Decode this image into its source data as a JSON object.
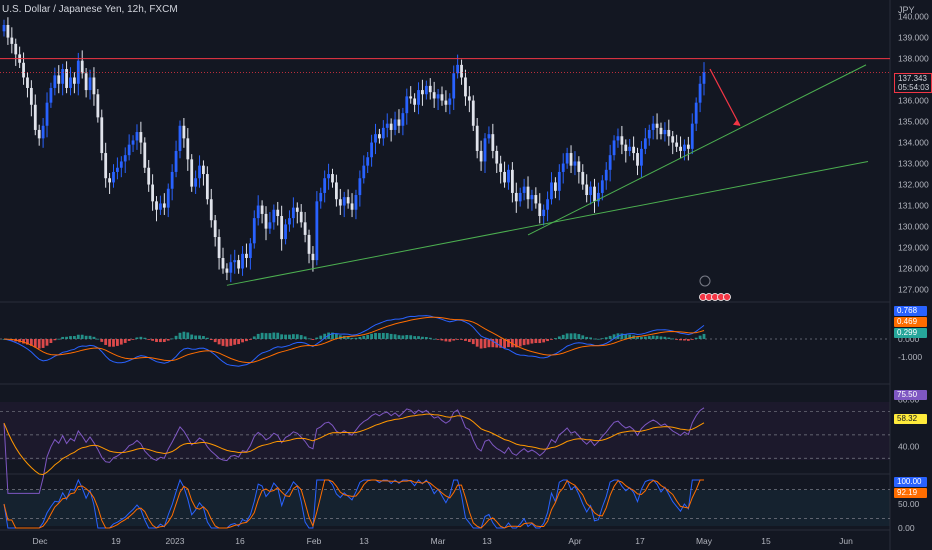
{
  "header": {
    "title": "U.S. Dollar / Japanese Yen, 12h, FXCM",
    "currency": "JPY"
  },
  "price_scale": {
    "ticks": [
      "140.000",
      "139.000",
      "138.000",
      "136.000",
      "135.000",
      "134.000",
      "133.000",
      "132.000",
      "131.000",
      "130.000",
      "129.000",
      "128.000",
      "127.000"
    ],
    "last_price": "137.343",
    "countdown": "05:54:03"
  },
  "macd_scale": {
    "ticks": [
      "0.000",
      "-1.000"
    ],
    "values": [
      "0.768",
      "0.469",
      "0.299"
    ]
  },
  "rsi_scale": {
    "ticks": [
      "80.00",
      "40.00"
    ],
    "values": [
      "75.50",
      "58.32"
    ]
  },
  "stoch_scale": {
    "ticks": [
      "50.00",
      "0.00"
    ],
    "values": [
      "100.00",
      "92.19"
    ]
  },
  "time_axis": [
    "Dec",
    "19",
    "2023",
    "16",
    "Feb",
    "13",
    "Mar",
    "13",
    "Apr",
    "17",
    "May",
    "15",
    "Jun"
  ],
  "colors": {
    "up": "#2962ff",
    "down": "#e0e3eb",
    "resistance": "#f23645",
    "trend": "#4caf50",
    "macd_pos": "#26a69a",
    "macd_neg": "#ff5252",
    "macd_line": "#2962ff",
    "signal_line": "#ff6d00",
    "rsi_line": "#7e57c2",
    "rsi_ma": "#ff9800",
    "stoch_k": "#2962ff",
    "stoch_d": "#ff6d00",
    "last_price_bg": "#f23645",
    "macd_tag1": "#2962ff",
    "macd_tag2": "#ff6d00",
    "macd_tag3": "#26a69a",
    "rsi_tag1": "#7e57c2",
    "rsi_tag2": "#ffeb3b",
    "stoch_tag1": "#2962ff",
    "stoch_tag2": "#ff6d00"
  },
  "chart_data": {
    "type": "candlestick",
    "symbol": "U.S. Dollar / Japanese Yen",
    "timeframe": "12h",
    "close": [
      139.6,
      139.0,
      138.7,
      138.2,
      137.8,
      137.1,
      136.6,
      135.8,
      134.6,
      134.2,
      134.8,
      135.9,
      136.6,
      137.2,
      136.8,
      137.5,
      136.6,
      137.1,
      136.8,
      137.9,
      137.3,
      136.5,
      137.1,
      136.3,
      135.2,
      133.5,
      132.3,
      132.1,
      132.6,
      132.8,
      133.1,
      133.4,
      133.9,
      134.1,
      134.5,
      134.0,
      132.8,
      132.0,
      131.2,
      130.8,
      131.1,
      130.9,
      131.8,
      132.6,
      133.6,
      134.8,
      134.2,
      133.2,
      131.9,
      132.3,
      132.9,
      132.5,
      131.3,
      130.3,
      129.5,
      128.5,
      128.0,
      127.8,
      128.3,
      128.4,
      128.0,
      128.7,
      128.5,
      129.2,
      130.4,
      131.0,
      130.6,
      129.9,
      130.2,
      130.8,
      130.5,
      129.4,
      130.1,
      130.4,
      130.9,
      130.7,
      130.2,
      129.6,
      128.7,
      128.4,
      131.2,
      131.6,
      132.3,
      132.5,
      132.1,
      131.3,
      131.0,
      131.4,
      131.1,
      130.8,
      131.5,
      132.3,
      132.9,
      133.3,
      134.0,
      134.4,
      134.2,
      134.7,
      134.9,
      134.6,
      135.1,
      134.8,
      135.4,
      136.2,
      136.1,
      135.8,
      136.5,
      136.3,
      136.7,
      136.4,
      136.1,
      136.3,
      136.0,
      135.8,
      136.1,
      137.3,
      137.7,
      137.1,
      136.2,
      136.0,
      134.8,
      133.6,
      133.1,
      134.2,
      134.4,
      133.6,
      133.0,
      132.6,
      132.1,
      132.7,
      131.6,
      131.2,
      131.6,
      131.9,
      131.3,
      131.5,
      131.1,
      130.5,
      130.8,
      131.3,
      132.1,
      131.7,
      132.6,
      133.0,
      133.5,
      132.9,
      133.1,
      132.6,
      132.0,
      131.5,
      131.9,
      131.2,
      131.6,
      132.2,
      132.7,
      133.4,
      134.1,
      134.3,
      133.9,
      133.6,
      133.8,
      133.5,
      132.9,
      133.7,
      134.2,
      134.6,
      134.9,
      134.7,
      134.4,
      134.6,
      134.3,
      134.0,
      133.8,
      133.6,
      133.9,
      133.7,
      134.9,
      135.9,
      136.8,
      137.343
    ],
    "resistance_level": 138.0,
    "last_price": 137.343,
    "ylim": [
      126.5,
      140.6
    ],
    "annotations": [
      "horizontal resistance line at 138.000",
      "ascending trendline from January low",
      "ascending support trendline from March low",
      "red arrow projecting decline from 137.3"
    ],
    "indicators": {
      "macd": {
        "last": {
          "macd": 0.768,
          "signal": 0.469,
          "histogram": 0.299
        }
      },
      "rsi": {
        "last": 75.5,
        "ma": 58.32,
        "levels": [
          70,
          50,
          30
        ]
      },
      "stochastic": {
        "last": {
          "k": 100.0,
          "d": 92.19
        },
        "levels": [
          80,
          20
        ]
      }
    },
    "x_labels": [
      "Dec",
      "19",
      "2023",
      "16",
      "Feb",
      "13",
      "Mar",
      "13",
      "Apr",
      "17",
      "May",
      "15",
      "Jun"
    ]
  }
}
